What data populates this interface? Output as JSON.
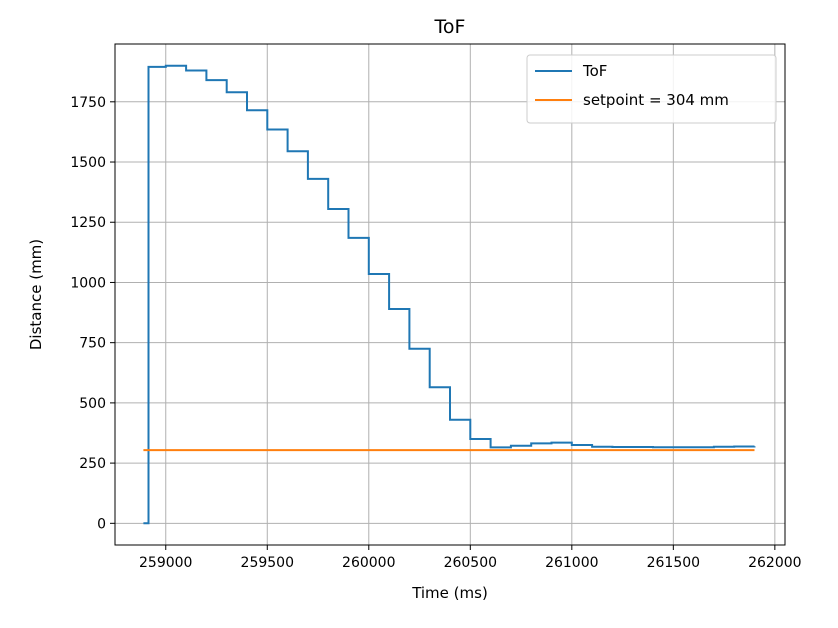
{
  "chart_data": {
    "type": "line",
    "title": "ToF",
    "xlabel": "Time (ms)",
    "ylabel": "Distance (mm)",
    "xlim": [
      258750,
      262050
    ],
    "ylim": [
      -90,
      1990
    ],
    "xticks": [
      259000,
      259500,
      260000,
      260500,
      261000,
      261500,
      262000
    ],
    "yticks": [
      0,
      250,
      500,
      750,
      1000,
      1250,
      1500,
      1750
    ],
    "grid": true,
    "legend_position": "top-right",
    "series": [
      {
        "name": "ToF",
        "color": "#1f77b4",
        "step": true,
        "x": [
          258890,
          258915,
          259000,
          259100,
          259200,
          259300,
          259400,
          259500,
          259600,
          259700,
          259800,
          259900,
          260000,
          260100,
          260200,
          260300,
          260400,
          260500,
          260600,
          260700,
          260800,
          260900,
          261000,
          261100,
          261200,
          261300,
          261400,
          261500,
          261600,
          261700,
          261800,
          261900
        ],
        "y": [
          0,
          1895,
          1900,
          1880,
          1840,
          1790,
          1715,
          1635,
          1545,
          1430,
          1305,
          1185,
          1035,
          890,
          725,
          565,
          430,
          350,
          315,
          322,
          332,
          335,
          325,
          318,
          317,
          317,
          316,
          316,
          316,
          318,
          319,
          320
        ]
      },
      {
        "name": "setpoint = 304 mm",
        "color": "#ff7f0e",
        "x": [
          258890,
          261900
        ],
        "y": [
          304,
          304
        ]
      }
    ]
  }
}
